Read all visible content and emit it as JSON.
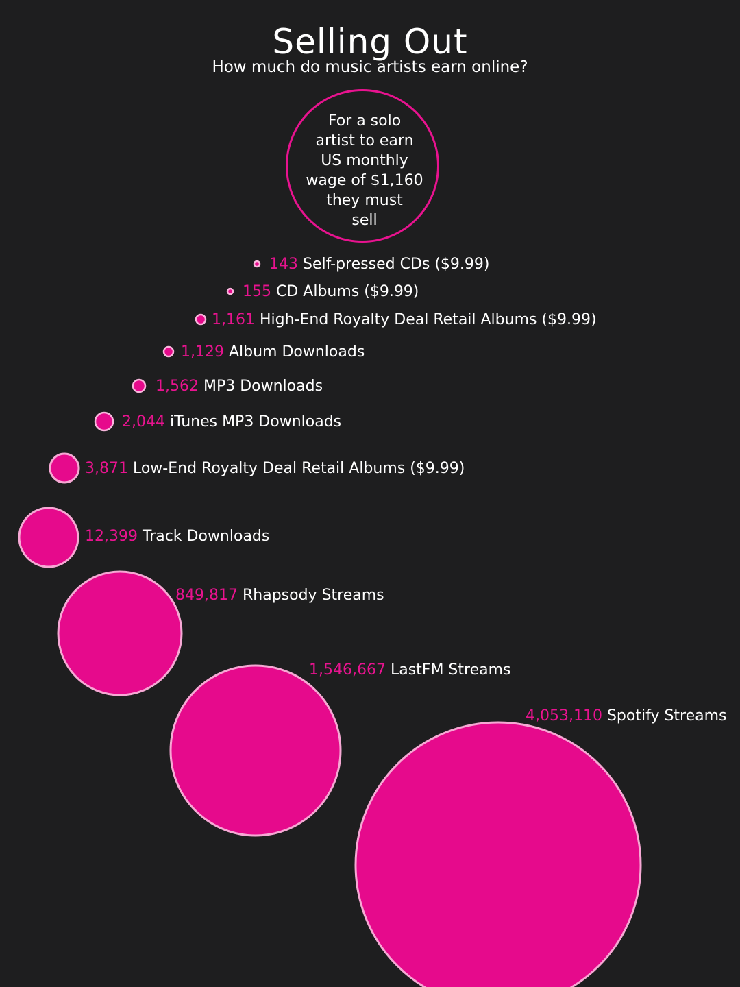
{
  "header": {
    "title": "Selling Out",
    "subtitle": "How much do music artists earn online?"
  },
  "intro": {
    "text": "For a solo\nartist to earn\nUS monthly\nwage of $1,160\nthey must\nsell"
  },
  "colors": {
    "background": "#1e1e1f",
    "accent": "#e60a8c",
    "value_text": "#e8138f",
    "label_text": "#ffffff",
    "circle_outline": "#f6a8d4"
  },
  "chart_data": {
    "type": "scatter",
    "encoding": "bubble area proportional to value",
    "series": [
      {
        "value": 143,
        "value_label": "143",
        "name": "Self-pressed CDs ($9.99)"
      },
      {
        "value": 155,
        "value_label": "155",
        "name": "CD Albums ($9.99)"
      },
      {
        "value": 1161,
        "value_label": "1,161",
        "name": "High-End Royalty Deal Retail Albums ($9.99)"
      },
      {
        "value": 1129,
        "value_label": "1,129",
        "name": "Album Downloads"
      },
      {
        "value": 1562,
        "value_label": "1,562",
        "name": "MP3 Downloads"
      },
      {
        "value": 2044,
        "value_label": "2,044",
        "name": "iTunes MP3 Downloads"
      },
      {
        "value": 3871,
        "value_label": "3,871",
        "name": "Low-End Royalty Deal Retail Albums ($9.99)"
      },
      {
        "value": 12399,
        "value_label": "12,399",
        "name": "Track Downloads"
      },
      {
        "value": 849817,
        "value_label": "849,817",
        "name": "Rhapsody Streams"
      },
      {
        "value": 1546667,
        "value_label": "1,546,667",
        "name": "LastFM Streams"
      },
      {
        "value": 4053110,
        "value_label": "4,053,110",
        "name": "Spotify Streams"
      }
    ]
  }
}
